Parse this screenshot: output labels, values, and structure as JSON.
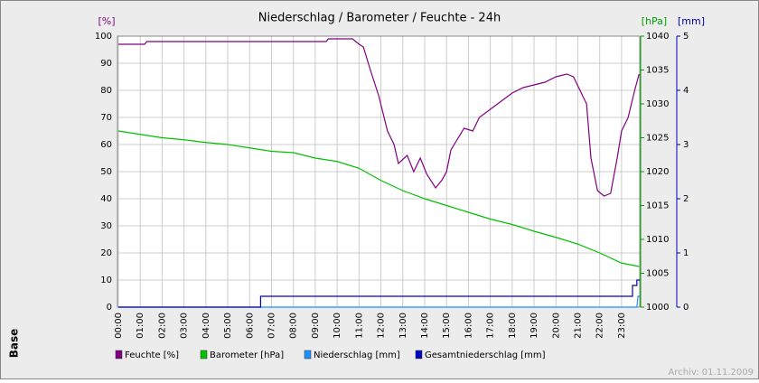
{
  "chart_data": {
    "type": "line",
    "title": "Niederschlag / Barometer / Feuchte - 24h",
    "y_label": "[%]",
    "y2_label": "[hPa]",
    "y3_label": "[mm]",
    "watermark": "Base",
    "footnote": "Archiv: 01.11.2009",
    "xlim": [
      0,
      23.83
    ],
    "xticks": [
      {
        "value": 0,
        "label": "00:00"
      },
      {
        "value": 1,
        "label": "01:00"
      },
      {
        "value": 2,
        "label": "02:00"
      },
      {
        "value": 3,
        "label": "03:00"
      },
      {
        "value": 4,
        "label": "04:00"
      },
      {
        "value": 5,
        "label": "05:00"
      },
      {
        "value": 6,
        "label": "06:00"
      },
      {
        "value": 7,
        "label": "07:00"
      },
      {
        "value": 8,
        "label": "08:00"
      },
      {
        "value": 9,
        "label": "09:00"
      },
      {
        "value": 10,
        "label": "10:00"
      },
      {
        "value": 11,
        "label": "11:00"
      },
      {
        "value": 12,
        "label": "12:00"
      },
      {
        "value": 13,
        "label": "13:00"
      },
      {
        "value": 14,
        "label": "14:00"
      },
      {
        "value": 15,
        "label": "15:00"
      },
      {
        "value": 16,
        "label": "16:00"
      },
      {
        "value": 17,
        "label": "17:00"
      },
      {
        "value": 18,
        "label": "18:00"
      },
      {
        "value": 19,
        "label": "19:00"
      },
      {
        "value": 20,
        "label": "20:00"
      },
      {
        "value": 21,
        "label": "21:00"
      },
      {
        "value": 22,
        "label": "22:00"
      },
      {
        "value": 23,
        "label": "23:00"
      }
    ],
    "ylim": [
      0,
      100
    ],
    "yticks": [
      0,
      10,
      20,
      30,
      40,
      50,
      60,
      70,
      80,
      90,
      100
    ],
    "y2lim": [
      1000,
      1040
    ],
    "y2ticks": [
      1000,
      1005,
      1010,
      1015,
      1020,
      1025,
      1030,
      1035,
      1040
    ],
    "y3lim": [
      0,
      5
    ],
    "y3ticks": [
      0,
      1,
      2,
      3,
      4,
      5
    ],
    "grid": true,
    "series": [
      {
        "name": "Feuchte [%]",
        "color": "#800080",
        "axis": "y",
        "x": [
          0,
          1.2,
          1.3,
          9.5,
          9.6,
          10.7,
          11,
          11.2,
          11.5,
          11.9,
          12.3,
          12.6,
          12.8,
          13.2,
          13.5,
          13.8,
          14.1,
          14.5,
          14.8,
          15,
          15.2,
          15.5,
          15.8,
          16.2,
          16.5,
          17,
          17.5,
          18,
          18.5,
          19,
          19.5,
          20,
          20.5,
          20.8,
          21.1,
          21.4,
          21.6,
          21.9,
          22.2,
          22.5,
          22.8,
          23,
          23.3,
          23.6,
          23.8
        ],
        "values": [
          97,
          97,
          98,
          98,
          99,
          99,
          97,
          96,
          88,
          78,
          65,
          60,
          53,
          56,
          50,
          55,
          49,
          44,
          47,
          50,
          58,
          62,
          66,
          65,
          70,
          73,
          76,
          79,
          81,
          82,
          83,
          85,
          86,
          85,
          80,
          75,
          55,
          43,
          41,
          42,
          55,
          65,
          70,
          80,
          86
        ]
      },
      {
        "name": "Barometer [hPa]",
        "color": "#00c000",
        "axis": "y2",
        "x": [
          0,
          1,
          2,
          3,
          4,
          5,
          6,
          7,
          8,
          9,
          10,
          11,
          12,
          13,
          14,
          15,
          16,
          17,
          18,
          19,
          20,
          21,
          22,
          23,
          23.8
        ],
        "values": [
          1026,
          1025.5,
          1025,
          1024.7,
          1024.3,
          1024,
          1023.5,
          1023,
          1022.8,
          1022,
          1021.5,
          1020.5,
          1018.7,
          1017.2,
          1016,
          1015,
          1014,
          1013,
          1012.2,
          1011.2,
          1010.3,
          1009.3,
          1008,
          1006.5,
          1006
        ]
      },
      {
        "name": "Niederschlag [mm]",
        "color": "#1e90ff",
        "axis": "y3",
        "x": [
          0,
          23.7,
          23.75,
          23.83
        ],
        "values": [
          0,
          0,
          0.2,
          0.2
        ]
      },
      {
        "name": "Gesamtniederschlag [mm]",
        "color": "#0000c0",
        "axis": "y3",
        "x": [
          0,
          6.5,
          6.5,
          23.5,
          23.5,
          23.7,
          23.7,
          23.83
        ],
        "values": [
          0,
          0,
          0.2,
          0.2,
          0.4,
          0.4,
          0.5,
          0.5
        ]
      }
    ]
  }
}
